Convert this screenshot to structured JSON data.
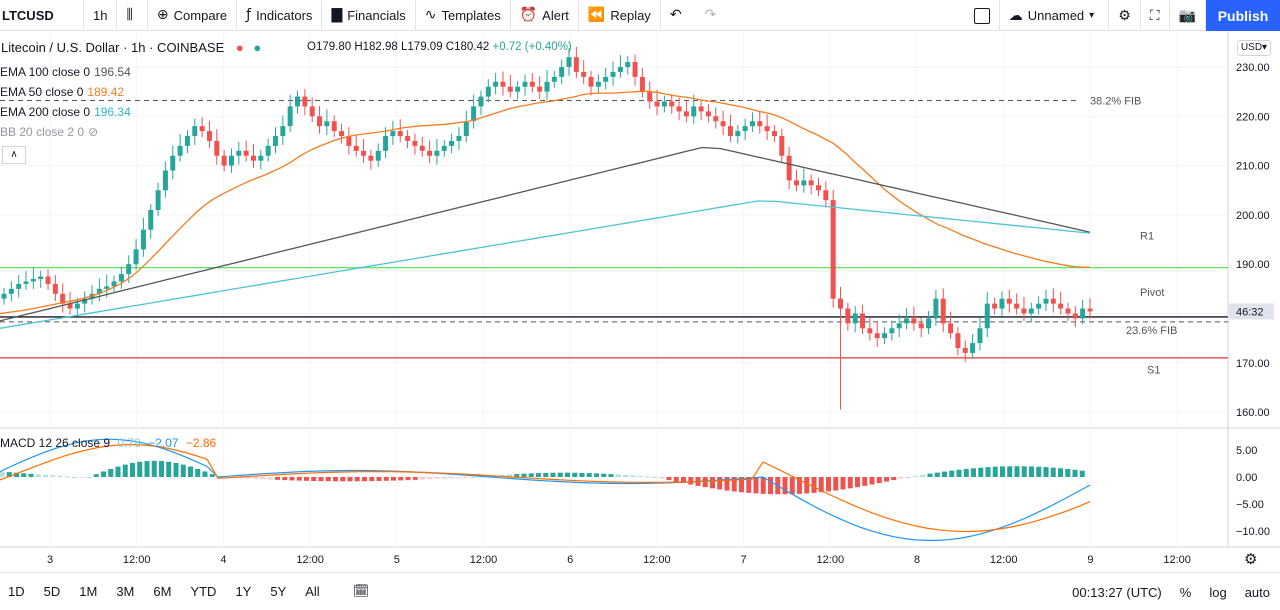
{
  "toolbar": {
    "symbol": "LTCUSD",
    "interval": "1h",
    "compare": "Compare",
    "indicators": "Indicators",
    "financials": "Financials",
    "templates": "Templates",
    "alert": "Alert",
    "replay": "Replay",
    "layout_name": "Unnamed",
    "publish": "Publish"
  },
  "legend": {
    "title": "Litecoin / U.S. Dollar · 1h · COINBASE",
    "open": "O179.80",
    "high": "H182.98",
    "low": "L179.09",
    "close": "C180.42",
    "change": "+0.72 (+0.40%)",
    "ema100_label": "EMA 100 close 0",
    "ema100_value": "196.54",
    "ema50_label": "EMA 50 close 0",
    "ema50_value": "189.42",
    "ema200_label": "EMA 200 close 0",
    "ema200_value": "196.34",
    "bb_label": "BB 20 close 2 0",
    "macd_label": "MACD 12 26 close 9",
    "macd_hist": "0.78",
    "macd_line": "−2.07",
    "macd_signal": "−2.86"
  },
  "annotations": {
    "fib382": "38.2% FIB",
    "fib236": "23.6% FIB",
    "r1": "R1",
    "pivot": "Pivot",
    "s1": "S1",
    "currency": "USD",
    "countdown": "46:32"
  },
  "bottombar": {
    "ranges": [
      "1D",
      "5D",
      "1M",
      "3M",
      "6M",
      "YTD",
      "1Y",
      "5Y",
      "All"
    ],
    "clock": "00:13:27 (UTC)",
    "percent": "%",
    "log": "log",
    "auto": "auto"
  },
  "colors": {
    "up": "#26a69a",
    "down": "#ef5350",
    "ema50": "#f57c1f",
    "ema100": "#555555",
    "ema200": "#4fc3d8",
    "r1": "#5ee35e",
    "s1": "#e53935",
    "macd": "#2196f3",
    "signal": "#ff6d00"
  },
  "chart_data": {
    "type": "candlestick",
    "symbol": "LTCUSD",
    "exchange": "COINBASE",
    "interval": "1h",
    "y_ticks": [
      160,
      170,
      180,
      190,
      200,
      210,
      220,
      230
    ],
    "x_ticks": [
      "3",
      "12:00",
      "4",
      "12:00",
      "5",
      "12:00",
      "6",
      "12:00",
      "7",
      "12:00",
      "8",
      "12:00",
      "9",
      "12:00"
    ],
    "levels": [
      {
        "name": "38.2% FIB",
        "value": 223.2,
        "style": "dashed"
      },
      {
        "name": "R1",
        "value": 189.3,
        "style": "solid"
      },
      {
        "name": "Pivot",
        "value": 179.3,
        "style": "solid"
      },
      {
        "name": "23.6% FIB",
        "value": 178.3,
        "style": "dashed"
      },
      {
        "name": "S1",
        "value": 171.0,
        "style": "solid"
      }
    ],
    "last_price": 180.42,
    "candles_close": [
      184,
      185,
      186,
      186.5,
      187,
      187.5,
      186,
      184,
      182,
      181,
      182,
      183,
      184,
      185,
      185.5,
      186.5,
      188,
      190,
      193,
      197,
      201,
      205,
      209,
      212,
      214,
      216,
      218,
      217,
      215,
      212,
      210,
      212,
      213,
      212,
      211,
      212,
      214,
      216,
      218,
      222,
      224,
      222,
      220,
      218,
      219,
      217,
      216,
      214,
      213,
      212,
      211,
      213,
      216,
      217,
      216,
      215,
      214,
      213,
      212,
      213,
      214,
      215,
      216,
      219,
      222,
      224,
      226,
      227,
      226,
      225,
      226,
      227,
      226,
      225,
      227,
      228,
      230,
      232,
      229,
      228,
      226,
      227,
      228,
      229,
      230,
      231,
      228,
      225,
      223,
      222,
      223,
      222,
      221,
      220,
      222,
      221,
      220,
      219,
      218,
      216,
      217,
      218,
      219,
      218,
      217,
      216,
      212,
      207,
      206,
      207,
      206,
      205,
      203,
      183,
      181,
      178,
      180,
      177,
      176,
      175,
      176,
      177,
      178,
      179,
      178,
      177,
      179,
      183,
      178,
      176,
      173,
      172,
      174,
      177,
      182,
      181,
      183,
      182,
      181,
      180,
      181,
      182,
      183,
      182,
      181,
      180,
      179,
      181,
      180.42
    ],
    "ema50": [
      180,
      180.2,
      180.4,
      180.6,
      180.9,
      181.2,
      181.5,
      181.8,
      182.1,
      182.4,
      182.7,
      183.1,
      183.5,
      184,
      184.6,
      185.3,
      186.1,
      187.1,
      188.3,
      189.7,
      191.2,
      192.8,
      194.4,
      196,
      197.6,
      199.1,
      200.6,
      201.9,
      203,
      203.9,
      204.7,
      205.5,
      206.2,
      206.9,
      207.5,
      208.1,
      208.8,
      209.5,
      210.3,
      211.3,
      212.3,
      213.1,
      213.8,
      214.4,
      215,
      215.5,
      215.9,
      216.2,
      216.4,
      216.6,
      216.8,
      217,
      217.3,
      217.6,
      217.8,
      218,
      218.1,
      218.2,
      218.3,
      218.4,
      218.6,
      218.8,
      219,
      219.4,
      219.9,
      220.4,
      220.9,
      221.4,
      221.8,
      222.1,
      222.4,
      222.7,
      222.9,
      223.1,
      223.4,
      223.7,
      224,
      224.4,
      224.6,
      224.7,
      224.7,
      224.7,
      224.8,
      224.9,
      225,
      225.1,
      225,
      224.8,
      224.5,
      224.2,
      224,
      223.8,
      223.5,
      223.2,
      223,
      222.8,
      222.5,
      222.2,
      221.9,
      221.5,
      221.1,
      220.8,
      220.4,
      219.9,
      219.2,
      218.4,
      217.6,
      216.9,
      216.2,
      215.4,
      214.6,
      213.4,
      212.1,
      210.6,
      209.3,
      207.8,
      206.4,
      205,
      203.8,
      202.6,
      201.6,
      200.6,
      199.7,
      198.8,
      198,
      197.4,
      196.7,
      196,
      195.4,
      194.8,
      194.2,
      193.7,
      193.2,
      192.7,
      192.2,
      191.8,
      191.4,
      191,
      190.6,
      190.3,
      190,
      189.7,
      189.5,
      189.4,
      189.42
    ]
  }
}
